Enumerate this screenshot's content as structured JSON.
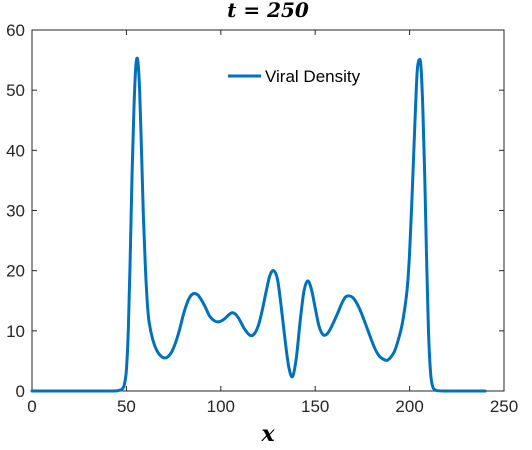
{
  "chart_data": {
    "type": "line",
    "title": "t = 250",
    "xlabel": "x",
    "ylabel": "",
    "xlim": [
      0,
      250
    ],
    "ylim": [
      0,
      60
    ],
    "xticks": [
      "0",
      "50",
      "100",
      "150",
      "200",
      "250"
    ],
    "yticks": [
      "0",
      "10",
      "20",
      "30",
      "40",
      "50",
      "60"
    ],
    "grid": false,
    "legend_position": "top-right",
    "colors": {
      "series": "#0072BD",
      "axes": "#262626",
      "background": "#ffffff"
    },
    "series": [
      {
        "name": "Viral Density",
        "x": [
          0,
          40,
          46,
          48,
          49,
          50,
          51,
          52,
          53,
          54,
          55,
          56,
          57,
          58,
          59,
          60,
          61,
          62,
          64,
          66,
          68,
          70,
          72,
          74,
          76,
          78,
          80,
          82,
          84,
          86,
          88,
          90,
          92,
          94,
          96,
          98,
          100,
          102,
          104,
          106,
          108,
          110,
          112,
          114,
          116,
          118,
          120,
          122,
          124,
          126,
          128,
          130,
          132,
          134,
          136,
          138,
          140,
          142,
          144,
          146,
          148,
          150,
          152,
          154,
          156,
          158,
          160,
          162,
          164,
          166,
          168,
          170,
          172,
          174,
          176,
          178,
          180,
          182,
          184,
          186,
          188,
          190,
          192,
          194,
          196,
          198,
          199,
          200,
          201,
          202,
          203,
          204,
          205,
          206,
          207,
          208,
          209,
          210,
          211,
          212,
          214,
          220,
          240
        ],
        "y": [
          0,
          0,
          0.1,
          0.4,
          1.2,
          3.5,
          10,
          22,
          36,
          47,
          54,
          55,
          50,
          40,
          29,
          21,
          15,
          11.5,
          8.5,
          6.8,
          5.9,
          5.5,
          5.7,
          6.5,
          8,
          10,
          12.5,
          14.5,
          15.8,
          16.2,
          15.9,
          15,
          13.8,
          12.5,
          11.8,
          11.5,
          11.6,
          12,
          12.6,
          13,
          12.7,
          11.8,
          10.6,
          9.7,
          9.2,
          9.6,
          11,
          13.5,
          16.5,
          19.2,
          20,
          18.6,
          14,
          8.6,
          4,
          2.4,
          5.5,
          11.5,
          16.5,
          18.3,
          16.9,
          13.8,
          10.8,
          9.4,
          9.4,
          10.3,
          11.6,
          13,
          14.5,
          15.6,
          15.8,
          15.5,
          14.6,
          13.3,
          11.7,
          10,
          8.3,
          6.8,
          5.8,
          5.3,
          5.1,
          5.6,
          6.6,
          8.5,
          11,
          15,
          18,
          23,
          30,
          38,
          46,
          53,
          55,
          54,
          47,
          36,
          22,
          10,
          3.5,
          1,
          0.1,
          0,
          0
        ]
      }
    ]
  }
}
